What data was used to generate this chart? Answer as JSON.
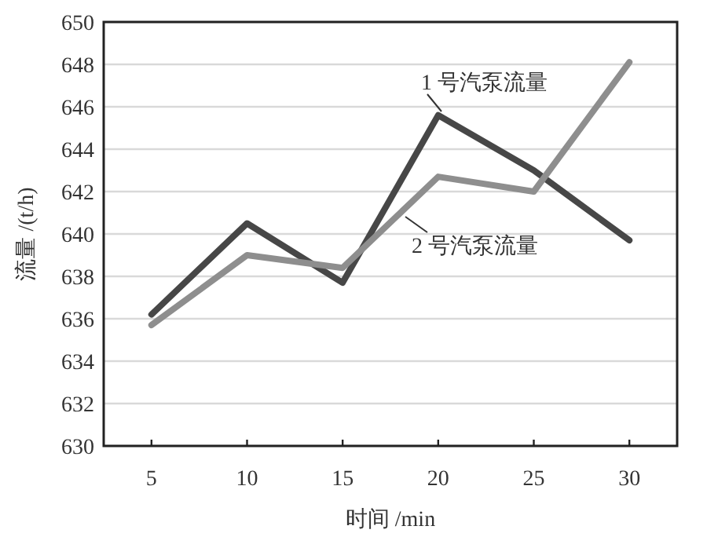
{
  "chart_data": {
    "type": "line",
    "xlabel": "时间 /min",
    "ylabel": "流量 /(t/h)",
    "categories": [
      "5",
      "10",
      "15",
      "20",
      "25",
      "30"
    ],
    "series": [
      {
        "name": "1 号汽泵流量",
        "color": "#474747",
        "values": [
          636.2,
          640.5,
          637.7,
          645.6,
          643.0,
          639.7
        ]
      },
      {
        "name": "2 号汽泵流量",
        "color": "#8e8e8e",
        "values": [
          635.7,
          639.0,
          638.4,
          642.7,
          642.0,
          648.1
        ]
      }
    ],
    "ylim": [
      630,
      650
    ],
    "yticks": [
      630,
      632,
      634,
      636,
      638,
      640,
      642,
      644,
      646,
      648,
      650
    ],
    "grid": "y",
    "legend": false,
    "marker": "none",
    "line_style": "solid"
  }
}
